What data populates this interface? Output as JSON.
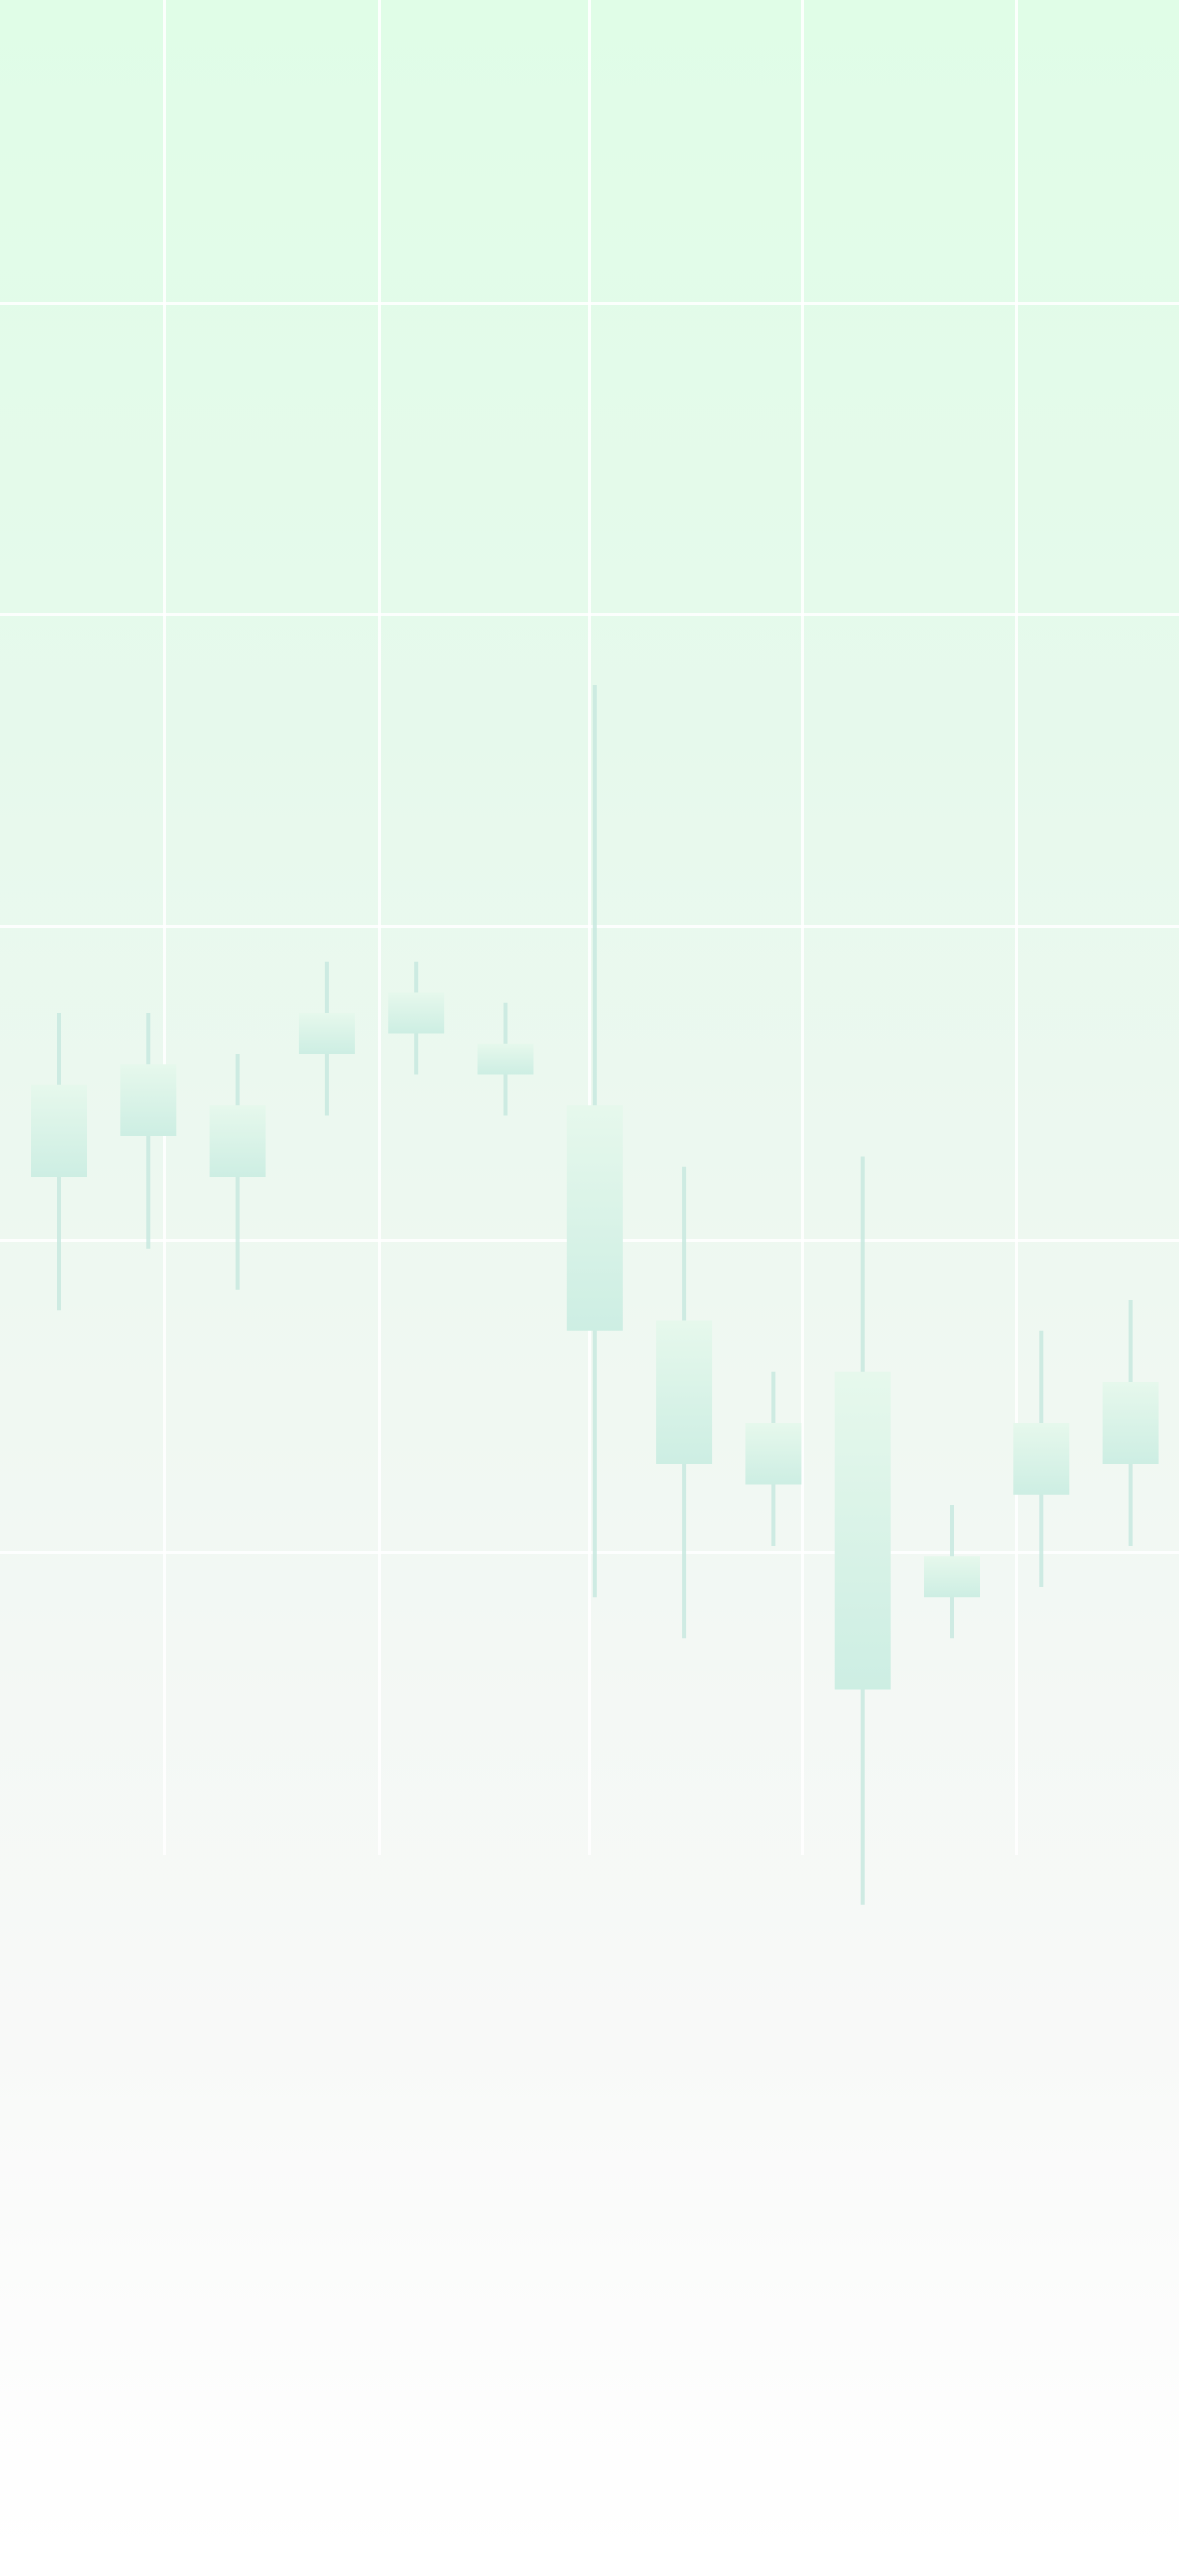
{
  "screen": {
    "kind": "decorative-background",
    "colors": {
      "gradient_top": "#e0fde7",
      "gradient_bottom": "#ffffff",
      "grid": "#ffffff",
      "candle_fill": "#cdeee3",
      "candle_fill_light": "#e6f8ec",
      "wick": "#c8e9df"
    }
  },
  "chart_data": {
    "type": "candlestick",
    "title": "",
    "xlabel": "",
    "ylabel": "",
    "grid": true,
    "legend": "none",
    "ylim": [
      0,
      100
    ],
    "candles": [
      {
        "open": 52,
        "close": 61,
        "high": 68,
        "low": 39
      },
      {
        "open": 63,
        "close": 56,
        "high": 68,
        "low": 45
      },
      {
        "open": 59,
        "close": 52,
        "high": 64,
        "low": 41
      },
      {
        "open": 68,
        "close": 64,
        "high": 73,
        "low": 58
      },
      {
        "open": 70,
        "close": 66,
        "high": 73,
        "low": 62
      },
      {
        "open": 65,
        "close": 62,
        "high": 69,
        "low": 58
      },
      {
        "open": 59,
        "close": 37,
        "high": 100,
        "low": 11
      },
      {
        "open": 38,
        "close": 24,
        "high": 53,
        "low": 7
      },
      {
        "open": 28,
        "close": 22,
        "high": 33,
        "low": 16
      },
      {
        "open": 33,
        "close": 2,
        "high": 54,
        "low": -19
      },
      {
        "open": 15,
        "close": 11,
        "high": 20,
        "low": 7
      },
      {
        "open": 28,
        "close": 21,
        "high": 37,
        "low": 12
      },
      {
        "open": 32,
        "close": 24,
        "high": 40,
        "low": 16
      }
    ]
  }
}
